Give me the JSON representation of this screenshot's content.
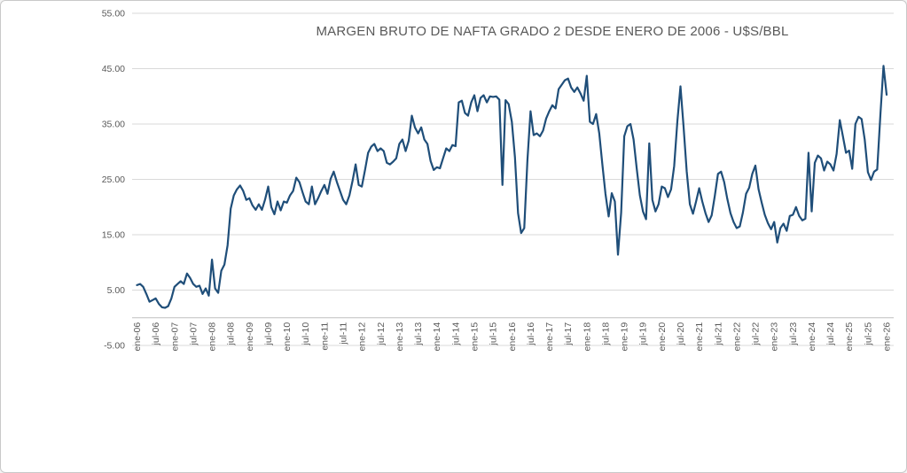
{
  "window": {
    "background": "#ffffff",
    "border_color": "#c9c9c9"
  },
  "chart_data": {
    "type": "line",
    "title": "MARGEN BRUTO DE NAFTA GRADO 2 DESDE ENERO DE 2006 - U$S/BBL",
    "xlabel": "",
    "ylabel": "",
    "ylim": [
      -5,
      55
    ],
    "y_ticks": [
      55,
      45,
      35,
      25,
      15,
      5,
      -5
    ],
    "grid": "horizontal",
    "legend": "none",
    "axis_zero_line": true,
    "x_start": "ene-06",
    "x_end": "ene-26",
    "x_interval": "monthly",
    "x_tick_every_months": 6,
    "x_tick_labels": [
      "ene-06",
      "jul-06",
      "ene-07",
      "jul-07",
      "ene-08",
      "jul-08",
      "ene-09",
      "jul-09",
      "ene-10",
      "jul-10",
      "ene-11",
      "jul-11",
      "ene-12",
      "jul-12",
      "ene-13",
      "jul-13",
      "ene-14",
      "jul-14",
      "ene-15",
      "jul-15",
      "ene-16",
      "jul-16",
      "ene-17",
      "jul-17",
      "ene-18",
      "jul-18",
      "ene-19",
      "jul-19",
      "ene-20",
      "jul-20",
      "ene-21",
      "jul-21",
      "ene-22",
      "jul-22",
      "ene-23",
      "jul-23",
      "ene-24",
      "jul-24",
      "ene-25",
      "jul-25",
      "ene-26"
    ],
    "series": [
      {
        "color": "#1F4E79",
        "values": [
          5.9,
          6.1,
          5.6,
          4.3,
          2.9,
          3.2,
          3.5,
          2.5,
          1.9,
          1.8,
          2.1,
          3.5,
          5.6,
          6.1,
          6.6,
          6.1,
          8.0,
          7.2,
          6.1,
          5.6,
          5.8,
          4.3,
          5.3,
          4.0,
          10.5,
          5.3,
          4.5,
          8.5,
          9.6,
          13.1,
          19.7,
          22.1,
          23.2,
          23.9,
          22.9,
          21.3,
          21.6,
          20.3,
          19.5,
          20.5,
          19.5,
          21.3,
          23.7,
          20.0,
          18.7,
          21.0,
          19.4,
          21.0,
          20.8,
          22.1,
          22.9,
          25.3,
          24.5,
          22.7,
          21.0,
          20.5,
          23.7,
          20.5,
          21.6,
          22.9,
          24.0,
          22.4,
          25.1,
          26.4,
          24.5,
          22.9,
          21.3,
          20.5,
          22.1,
          24.7,
          27.7,
          24.0,
          23.7,
          26.7,
          29.8,
          30.9,
          31.4,
          30.1,
          30.6,
          30.1,
          28.0,
          27.7,
          28.2,
          28.8,
          31.4,
          32.2,
          30.1,
          32.0,
          36.5,
          34.4,
          33.3,
          34.4,
          32.2,
          31.4,
          28.3,
          26.7,
          27.2,
          27.0,
          28.8,
          30.6,
          30.1,
          31.2,
          31.0,
          38.9,
          39.2,
          37.0,
          36.5,
          38.9,
          40.2,
          37.3,
          39.7,
          40.2,
          38.9,
          40.0,
          39.9,
          40.0,
          39.4,
          24.0,
          39.3,
          38.6,
          35.4,
          29.0,
          18.9,
          15.3,
          16.2,
          28.5,
          37.3,
          33.0,
          33.3,
          32.8,
          33.8,
          36.0,
          37.3,
          38.4,
          37.8,
          41.3,
          42.1,
          42.9,
          43.2,
          41.6,
          40.8,
          41.6,
          40.5,
          39.2,
          43.7,
          35.4,
          35.0,
          36.8,
          33.3,
          27.7,
          22.4,
          18.3,
          22.5,
          21.0,
          11.4,
          19.0,
          32.8,
          34.6,
          35.0,
          32.2,
          26.9,
          22.1,
          19.2,
          17.8,
          31.5,
          21.3,
          19.2,
          20.5,
          23.7,
          23.4,
          21.8,
          23.2,
          27.4,
          35.5,
          41.8,
          34.5,
          26.5,
          20.5,
          18.8,
          21.0,
          23.4,
          21.0,
          18.9,
          17.3,
          18.5,
          22.0,
          26.0,
          26.4,
          24.5,
          21.5,
          18.9,
          17.3,
          16.2,
          16.5,
          19.0,
          22.4,
          23.5,
          26.0,
          27.5,
          23.2,
          20.8,
          18.6,
          17.1,
          16.0,
          17.3,
          13.6,
          16.2,
          17.0,
          15.7,
          18.4,
          18.6,
          20.0,
          18.4,
          17.6,
          17.9,
          29.8,
          19.2,
          28.0,
          29.3,
          28.8,
          26.6,
          28.2,
          27.7,
          26.6,
          29.6,
          35.7,
          32.8,
          29.8,
          30.2,
          26.9,
          35.0,
          36.3,
          35.9,
          32.2,
          26.3,
          24.9,
          26.4,
          26.8,
          36.7,
          45.5,
          40.3
        ]
      }
    ],
    "colors": {
      "line": "#1F4E79",
      "gridline": "#D9D9D9",
      "axis_line": "#BFBFBF",
      "tick_text": "#595959",
      "title_text": "#595959"
    }
  }
}
